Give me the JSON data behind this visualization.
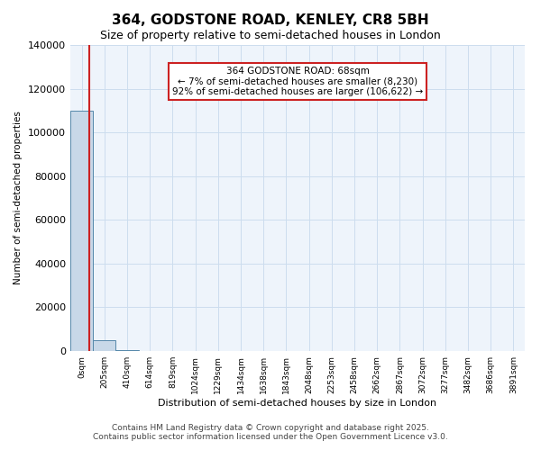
{
  "title_line1": "364, GODSTONE ROAD, KENLEY, CR8 5BH",
  "title_line2": "Size of property relative to semi-detached houses in London",
  "xlabel": "Distribution of semi-detached houses by size in London",
  "ylabel": "Number of semi-detached properties",
  "annotation_title": "364 GODSTONE ROAD: 68sqm",
  "annotation_line2": "← 7% of semi-detached houses are smaller (8,230)",
  "annotation_line3": "92% of semi-detached houses are larger (106,622) →",
  "footer_line1": "Contains HM Land Registry data © Crown copyright and database right 2025.",
  "footer_line2": "Contains public sector information licensed under the Open Government Licence v3.0.",
  "bin_labels": [
    "0sqm",
    "205sqm",
    "410sqm",
    "614sqm",
    "819sqm",
    "1024sqm",
    "1229sqm",
    "1434sqm",
    "1638sqm",
    "1843sqm",
    "2048sqm",
    "2253sqm",
    "2458sqm",
    "2662sqm",
    "2867sqm",
    "3072sqm",
    "3277sqm",
    "3482sqm",
    "3686sqm",
    "3891sqm"
  ],
  "bar_values": [
    110000,
    5000,
    500,
    200,
    100,
    50,
    30,
    20,
    15,
    10,
    8,
    6,
    5,
    4,
    3,
    3,
    2,
    2,
    2,
    1
  ],
  "bar_color": "#c8d8e8",
  "bar_edge_color": "#5588aa",
  "grid_color": "#ccddee",
  "background_color": "#eef4fb",
  "red_line_color": "#cc2222",
  "ylim": [
    0,
    140000
  ],
  "yticks": [
    0,
    20000,
    40000,
    60000,
    80000,
    100000,
    120000,
    140000
  ],
  "annotation_box_color": "#cc2222",
  "property_bin_index": 0,
  "red_line_x": 0.33
}
